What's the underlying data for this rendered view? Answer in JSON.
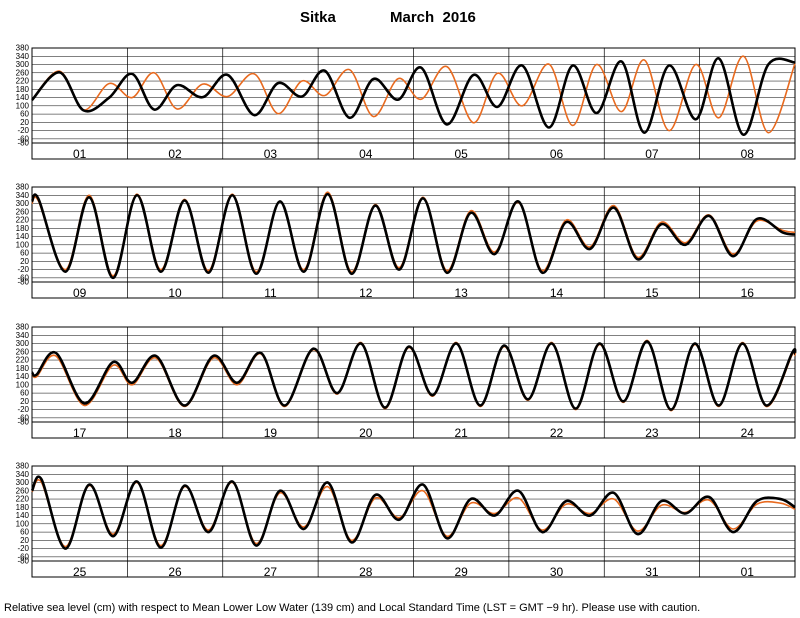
{
  "header": {
    "station": "Sitka",
    "month_year": "March  2016"
  },
  "footer": {
    "caption": "Relative sea level (cm) with respect to Mean Lower Low Water (139 cm) and Local Standard Time (LST = GMT −9 hr). Please use with caution."
  },
  "colors": {
    "observed": "#000000",
    "predicted": "#e86a1f",
    "grid": "#000000",
    "background": "#ffffff"
  },
  "chart_data": {
    "type": "line",
    "ylim": [
      -80,
      380
    ],
    "yticks": [
      "380",
      "340",
      "300",
      "260",
      "220",
      "180",
      "140",
      "100",
      "60",
      "20",
      "-20",
      "-60",
      "-80"
    ],
    "ytick_values": [
      380,
      340,
      300,
      260,
      220,
      180,
      140,
      100,
      60,
      20,
      -20,
      -60,
      -80
    ],
    "grid": true,
    "series": [
      {
        "name": "",
        "style": "observed (black, thick)"
      },
      {
        "name": "",
        "style": "predicted (orange, thin)"
      }
    ],
    "panels": [
      {
        "days": [
          "01",
          "02",
          "03",
          "04",
          "05",
          "06",
          "07",
          "08"
        ],
        "x": [
          0,
          0.29,
          0.54,
          0.81,
          1.05,
          1.28,
          1.52,
          1.79,
          2.05,
          2.33,
          2.58,
          2.83,
          3.07,
          3.33,
          3.58,
          3.84,
          4.08,
          4.35,
          4.63,
          4.88,
          5.14,
          5.42,
          5.67,
          5.92,
          6.18,
          6.42,
          6.68,
          6.96,
          7.2,
          7.46,
          7.72,
          8
        ],
        "observed": [
          128,
          262,
          78,
          140,
          255,
          82,
          200,
          142,
          250,
          55,
          210,
          145,
          270,
          42,
          230,
          130,
          285,
          10,
          250,
          95,
          295,
          -5,
          295,
          65,
          315,
          -30,
          295,
          35,
          330,
          -40,
          300,
          310
        ],
        "predicted": [
          130,
          268,
          80,
          208,
          140,
          260,
          85,
          205,
          145,
          255,
          62,
          220,
          150,
          275,
          48,
          232,
          132,
          290,
          18,
          258,
          100,
          302,
          5,
          300,
          72,
          322,
          -20,
          300,
          42,
          340,
          -30,
          305
        ]
      },
      {
        "days": [
          "09",
          "10",
          "11",
          "12",
          "13",
          "14",
          "15",
          "16"
        ],
        "x": [
          0,
          0.07,
          0.35,
          0.6,
          0.85,
          1.1,
          1.35,
          1.6,
          1.85,
          2.1,
          2.35,
          2.6,
          2.85,
          3.1,
          3.35,
          3.6,
          3.85,
          4.1,
          4.35,
          4.6,
          4.85,
          5.1,
          5.35,
          5.6,
          5.85,
          6.1,
          6.35,
          6.6,
          6.85,
          7.1,
          7.35,
          7.6,
          7.87,
          8
        ],
        "observed": [
          310,
          320,
          -30,
          330,
          -60,
          340,
          -30,
          315,
          -35,
          340,
          -40,
          310,
          -30,
          345,
          -40,
          290,
          -20,
          325,
          -35,
          255,
          55,
          310,
          -35,
          210,
          80,
          280,
          30,
          200,
          100,
          240,
          45,
          225,
          160,
          150
        ],
        "predicted": [
          300,
          310,
          -20,
          340,
          -50,
          345,
          -20,
          320,
          -25,
          345,
          -30,
          310,
          -20,
          355,
          -30,
          295,
          -10,
          330,
          -25,
          265,
          65,
          305,
          -25,
          220,
          90,
          290,
          40,
          210,
          110,
          245,
          55,
          215,
          170,
          160
        ]
      },
      {
        "days": [
          "17",
          "18",
          "19",
          "20",
          "21",
          "22",
          "23",
          "24"
        ],
        "x": [
          0,
          0.05,
          0.25,
          0.55,
          0.85,
          1.05,
          1.3,
          1.6,
          1.9,
          2.15,
          2.4,
          2.65,
          2.95,
          3.2,
          3.45,
          3.7,
          3.95,
          4.2,
          4.45,
          4.7,
          4.95,
          5.2,
          5.45,
          5.7,
          5.95,
          6.2,
          6.45,
          6.7,
          6.95,
          7.2,
          7.45,
          7.7,
          7.97,
          8
        ],
        "observed": [
          160,
          150,
          255,
          10,
          210,
          110,
          240,
          0,
          240,
          110,
          255,
          0,
          275,
          60,
          300,
          -10,
          285,
          50,
          300,
          0,
          290,
          30,
          300,
          -15,
          300,
          20,
          310,
          -20,
          300,
          0,
          300,
          0,
          255,
          250
        ],
        "predicted": [
          155,
          140,
          240,
          0,
          195,
          100,
          230,
          -5,
          230,
          100,
          250,
          -5,
          270,
          55,
          305,
          -15,
          280,
          45,
          305,
          -5,
          285,
          25,
          305,
          -20,
          295,
          15,
          315,
          -25,
          295,
          -5,
          305,
          -5,
          245,
          240
        ]
      },
      {
        "days": [
          "25",
          "26",
          "27",
          "28",
          "29",
          "30",
          "31",
          "01"
        ],
        "x": [
          0,
          0.1,
          0.35,
          0.6,
          0.85,
          1.1,
          1.35,
          1.6,
          1.85,
          2.1,
          2.35,
          2.6,
          2.85,
          3.1,
          3.35,
          3.6,
          3.85,
          4.1,
          4.35,
          4.6,
          4.85,
          5.1,
          5.35,
          5.6,
          5.85,
          6.1,
          6.35,
          6.6,
          6.85,
          7.1,
          7.35,
          7.6,
          7.85,
          8
        ],
        "observed": [
          260,
          315,
          -20,
          290,
          40,
          305,
          -15,
          285,
          60,
          305,
          -5,
          260,
          75,
          300,
          10,
          240,
          120,
          290,
          30,
          220,
          140,
          260,
          60,
          210,
          140,
          250,
          50,
          210,
          150,
          230,
          60,
          210,
          220,
          180
        ],
        "predicted": [
          255,
          300,
          -10,
          285,
          50,
          300,
          -5,
          280,
          70,
          300,
          5,
          250,
          85,
          280,
          20,
          225,
          130,
          260,
          40,
          200,
          150,
          225,
          70,
          195,
          150,
          220,
          65,
          190,
          155,
          215,
          75,
          195,
          200,
          170
        ]
      }
    ]
  }
}
